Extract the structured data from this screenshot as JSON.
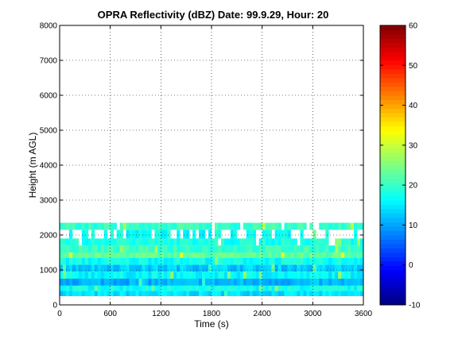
{
  "chart_data": {
    "type": "heatmap",
    "title": "OPRA Reflectivity (dBZ)  Date: 99.9.29, Hour: 20",
    "xlabel": "Time (s)",
    "ylabel": "Height (m AGL)",
    "xlim": [
      0,
      3600
    ],
    "ylim": [
      0,
      8000
    ],
    "x_ticks": [
      "0",
      "600",
      "1200",
      "1800",
      "2400",
      "3000",
      "3600"
    ],
    "y_ticks": [
      "0",
      "1000",
      "2000",
      "3000",
      "4000",
      "5000",
      "6000",
      "7000",
      "8000"
    ],
    "grid": true,
    "colormap": "jet",
    "colorbar": {
      "min": -10,
      "max": 60,
      "ticks": [
        "-10",
        "0",
        "10",
        "20",
        "30",
        "40",
        "50",
        "60"
      ]
    },
    "layers": [
      {
        "height_min": 250,
        "height_max": 400,
        "dbz": 14
      },
      {
        "height_min": 400,
        "height_max": 550,
        "dbz": 17
      },
      {
        "height_min": 550,
        "height_max": 750,
        "dbz": 11
      },
      {
        "height_min": 750,
        "height_max": 950,
        "dbz": 16
      },
      {
        "height_min": 950,
        "height_max": 1150,
        "dbz": 13
      },
      {
        "height_min": 1150,
        "height_max": 1350,
        "dbz": 17
      },
      {
        "height_min": 1350,
        "height_max": 1500,
        "dbz": 23
      },
      {
        "height_min": 1500,
        "height_max": 1700,
        "dbz": 20
      },
      {
        "height_min": 1700,
        "height_max": 1900,
        "dbz": 18
      },
      {
        "height_min": 1900,
        "height_max": 2150,
        "dbz": 17
      },
      {
        "height_min": 2150,
        "height_max": 2350,
        "dbz": 20
      }
    ]
  },
  "colors": {
    "background": "#ffffff",
    "axes": "#000000",
    "grid": "#000000"
  }
}
